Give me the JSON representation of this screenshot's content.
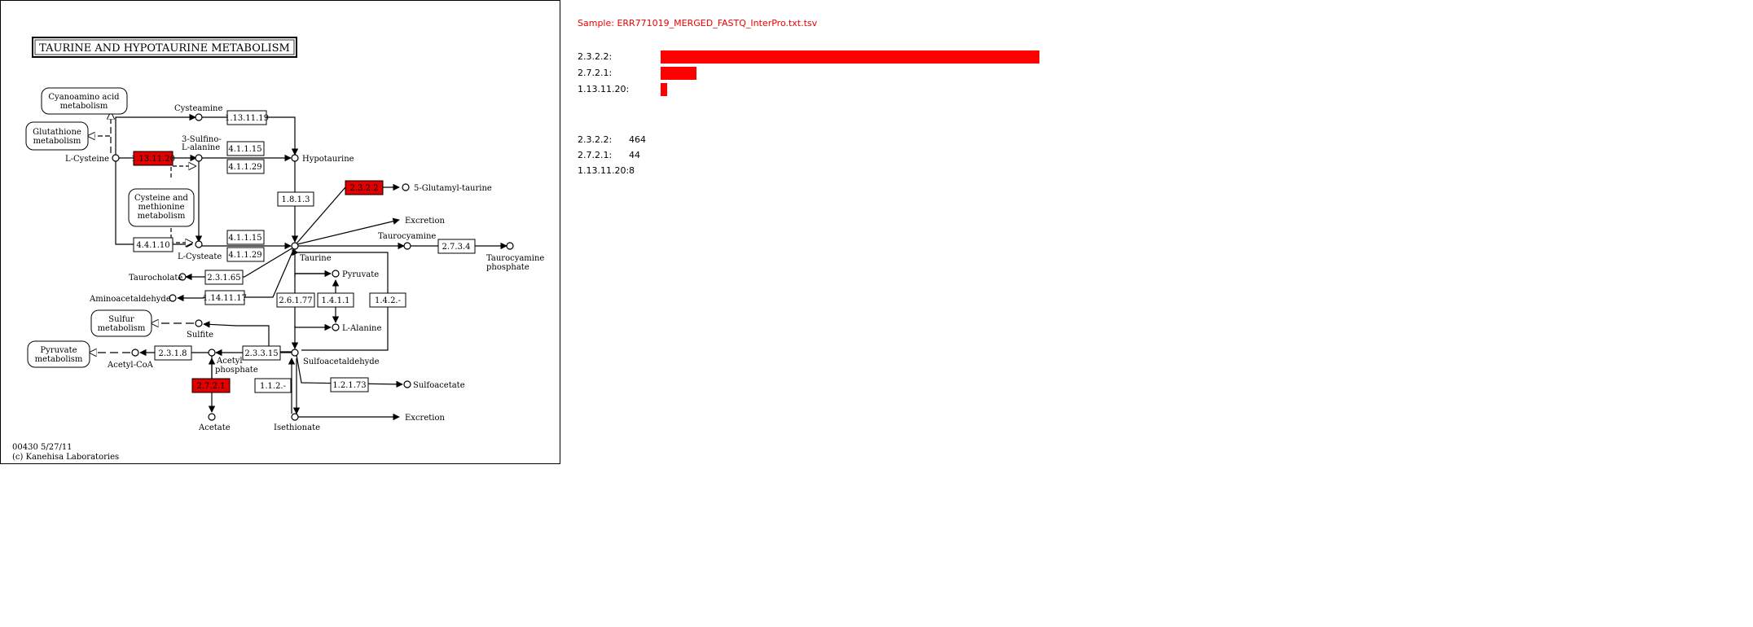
{
  "map": {
    "title": "TAURINE AND HYPOTAURINE METABOLISM",
    "footer_id": "00430 5/27/11",
    "footer_credit": "(c) Kanehisa Laboratories",
    "highlight_color": "#e00000",
    "pathways": {
      "cyanoamino": [
        "Cyanoamino acid",
        "metabolism"
      ],
      "glutathione": [
        "Glutathione",
        "metabolism"
      ],
      "cysteine_methionine": [
        "Cysteine and",
        "methionine",
        "metabolism"
      ],
      "sulfur": [
        "Sulfur",
        "metabolism"
      ],
      "pyruvate": [
        "Pyruvate",
        "metabolism"
      ]
    },
    "compounds": {
      "l_cysteine": "L-Cysteine",
      "cysteamine": "Cysteamine",
      "sulfinoalanine": [
        "3-Sulfino-",
        "L-alanine"
      ],
      "hypotaurine": "Hypotaurine",
      "glutamyl_taurine": "5-Glutamyl-taurine",
      "excretion_1": "Excretion",
      "taurocyamine": "Taurocyamine",
      "taurocyamine_phosphate": [
        "Taurocyamine",
        "phosphate"
      ],
      "l_cysteate": "L-Cysteate",
      "taurine": "Taurine",
      "taurocholate": "Taurocholate",
      "pyruvate": "Pyruvate",
      "aminoacetaldehyde": "Aminoacetaldehyde",
      "l_alanine": "L-Alanine",
      "sulfite": "Sulfite",
      "acetyl_coa": "Acetyl-CoA",
      "acetyl_phosphate": [
        "Acetyl",
        "phosphate"
      ],
      "sulfoacetaldehyde": "Sulfoacetaldehyde",
      "sulfoacetate": "Sulfoacetate",
      "acetate": "Acetate",
      "isethionate": "Isethionate",
      "excretion_2": "Excretion"
    },
    "enzymes": {
      "e_1_13_11_20": "1.13.11.20",
      "e_1_13_11_19": "1.13.11.19",
      "e_4_1_1_15_a": "4.1.1.15",
      "e_4_1_1_29_a": "4.1.1.29",
      "e_1_8_1_3": "1.8.1.3",
      "e_2_3_2_2": "2.3.2.2",
      "e_4_4_1_10": "4.4.1.10",
      "e_4_1_1_15_b": "4.1.1.15",
      "e_4_1_1_29_b": "4.1.1.29",
      "e_2_7_3_4": "2.7.3.4",
      "e_2_3_1_65": "2.3.1.65",
      "e_1_14_11_17": "1.14.11.17",
      "e_2_6_1_77": "2.6.1.77",
      "e_1_4_1_1": "1.4.1.1",
      "e_1_4_2": "1.4.2.-",
      "e_2_3_1_8": "2.3.1.8",
      "e_2_3_3_15": "2.3.3.15",
      "e_2_7_2_1": "2.7.2.1",
      "e_1_1_2": "1.1.2.-",
      "e_1_2_1_73": "1.2.1.73"
    }
  },
  "sample": {
    "title": "Sample: ERR771019_MERGED_FASTQ_InterPro.txt.tsv",
    "bar_color": "#ff0000",
    "bars": [
      {
        "label": "2.3.2.2:",
        "value": 464
      },
      {
        "label": "2.7.2.1:",
        "value": 44
      },
      {
        "label": "1.13.11.20:",
        "value": 8
      }
    ],
    "counts": [
      {
        "label": "2.3.2.2:",
        "value": "464"
      },
      {
        "label": "2.7.2.1:",
        "value": "44"
      },
      {
        "label": "1.13.11.20:",
        "value": "8"
      }
    ]
  }
}
